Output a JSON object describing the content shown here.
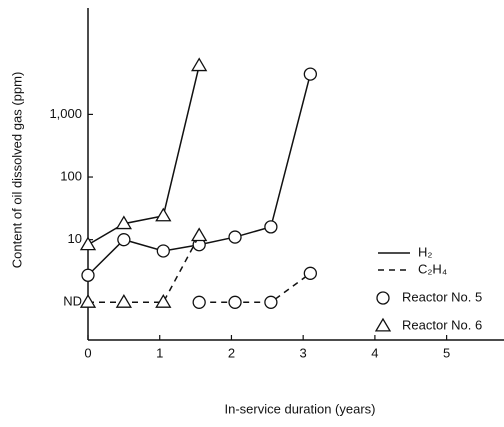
{
  "chart_data": {
    "type": "line",
    "xlabel": "In-service duration (years)",
    "ylabel": "Content of oil dissolved gas (ppm)",
    "xlim": [
      0,
      5.8
    ],
    "xticks": [
      0,
      1,
      2,
      3,
      4,
      5
    ],
    "ylim": [
      0.25,
      50000
    ],
    "log_y": true,
    "yticks": [
      {
        "value": 1,
        "label": "ND"
      },
      10,
      100,
      {
        "value": 1000,
        "label": "1,000"
      }
    ],
    "color": "#111111",
    "legend": {
      "lines": [
        {
          "label": "H₂",
          "dashed": false
        },
        {
          "label": "C₂H₄",
          "dashed": true
        }
      ],
      "markers": [
        {
          "label": "Reactor No. 5",
          "marker": "circle"
        },
        {
          "label": "Reactor No. 6",
          "marker": "triangle"
        }
      ]
    },
    "series": [
      {
        "line": 0,
        "marker": 0,
        "x": [
          0,
          0.5,
          1.05,
          1.55,
          2.05,
          2.55,
          3.1
        ],
        "values": [
          2.7,
          10,
          6.6,
          8.3,
          11,
          16,
          4400
        ]
      },
      {
        "line": 0,
        "marker": 1,
        "x": [
          0,
          0.5,
          1.05,
          1.55
        ],
        "values": [
          8.3,
          18,
          24,
          6000
        ]
      },
      {
        "line": 1,
        "marker": 0,
        "x": [
          1.55,
          2.05,
          2.55,
          3.1
        ],
        "values": [
          1,
          1,
          1,
          2.9
        ]
      },
      {
        "line": 1,
        "marker": 1,
        "x": [
          0,
          0.5,
          1.05,
          1.55
        ],
        "values": [
          1,
          1,
          1,
          11.6
        ]
      }
    ]
  }
}
